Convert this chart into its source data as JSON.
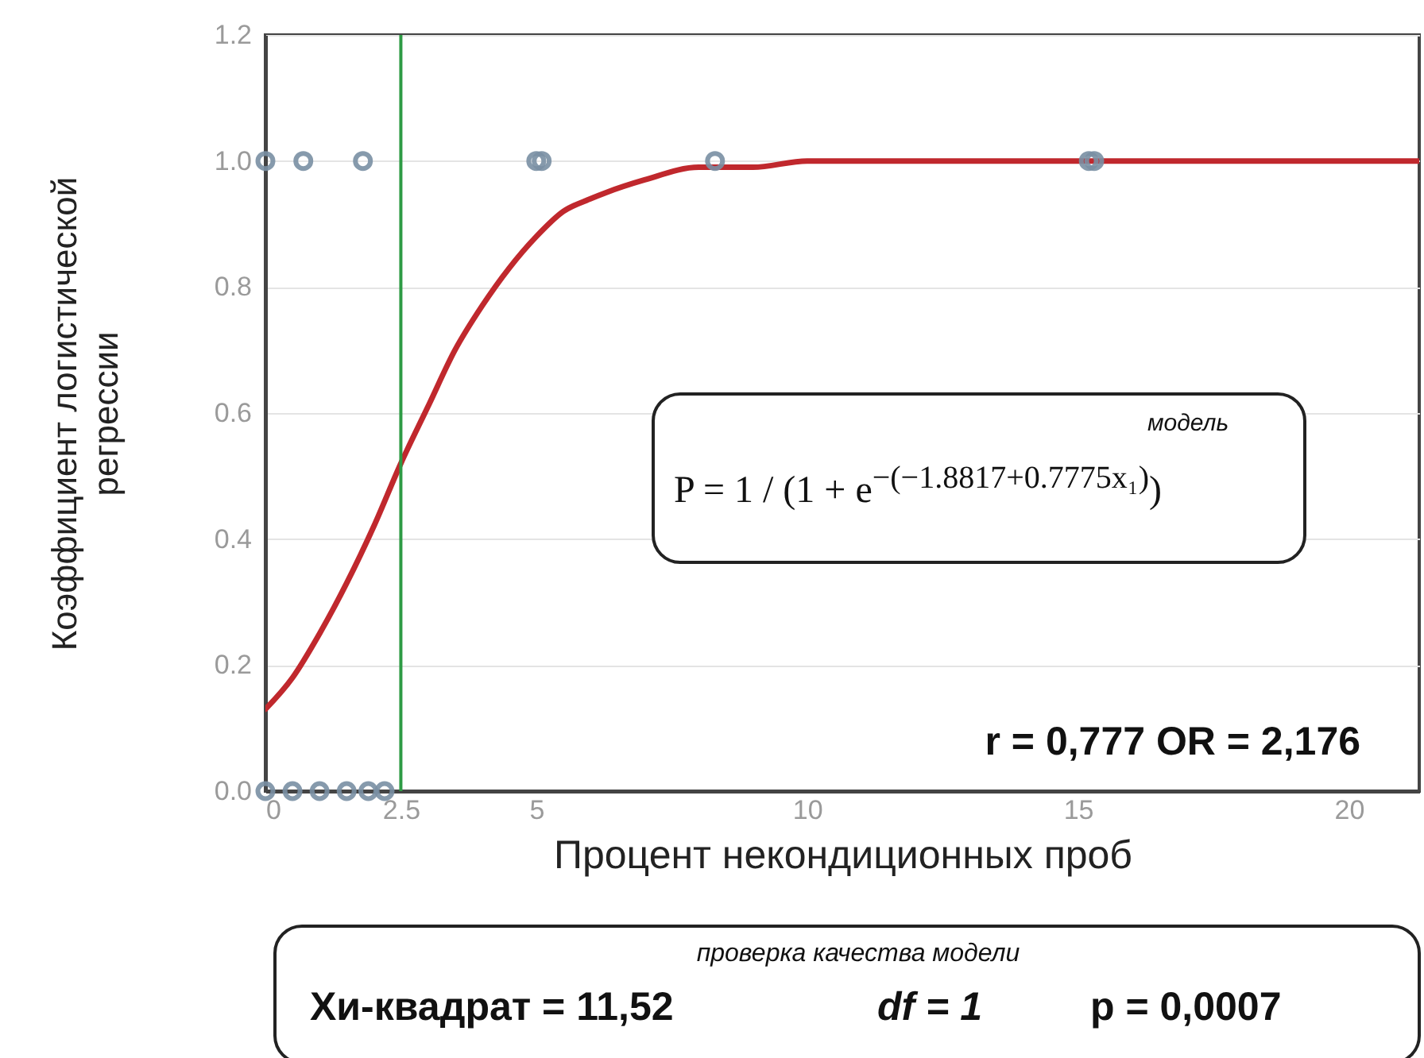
{
  "chart_data": {
    "type": "scatter",
    "xlabel": "Процент некондиционных проб",
    "ylabel": "Коэффициент логистической регрессии",
    "xlim": [
      0,
      21.3
    ],
    "ylim": [
      0,
      1.2
    ],
    "xticks": [
      0,
      2.5,
      5,
      10,
      15,
      20
    ],
    "yticks": [
      {
        "value": 0,
        "label": "0.0"
      },
      0.2,
      0.4,
      0.6,
      0.8,
      {
        "value": 1,
        "label": "1.0"
      },
      1.2
    ],
    "grid": "y",
    "series": [
      {
        "type": "line",
        "color": "#c0282d",
        "x": [
          0,
          0.5,
          1,
          1.5,
          2,
          2.5,
          3,
          3.5,
          4,
          4.5,
          5,
          5.5,
          6,
          7,
          8,
          9,
          10,
          12,
          15,
          21.3
        ],
        "values": [
          0.13,
          0.18,
          0.25,
          0.33,
          0.42,
          0.52,
          0.61,
          0.7,
          0.77,
          0.83,
          0.88,
          0.92,
          0.94,
          0.97,
          0.99,
          0.99,
          1,
          1,
          1,
          1
        ]
      },
      {
        "marker": "circle",
        "color": "#7a90a4",
        "x": [
          0,
          0.7,
          1.8,
          5,
          5.1,
          8.3,
          15.2,
          15.3,
          0,
          0.5,
          1,
          1.5,
          1.9,
          2.2
        ],
        "values": [
          1,
          1,
          1,
          1,
          1,
          1,
          1,
          1,
          0,
          0,
          0,
          0,
          0,
          0
        ]
      }
    ],
    "ref_lines": [
      {
        "axis": "x",
        "value": 2.5,
        "color": "#2e9b45"
      }
    ],
    "annotations": [
      "модель",
      "P = 1 / (1 + e$^{−(−1.8817+0.7775x₁)}$)",
      "r = 0,777  OR = 2,176",
      "проверка качества модели",
      "Хи-квадрат = 11,52",
      "df = 1",
      "p = 0,0007"
    ]
  }
}
